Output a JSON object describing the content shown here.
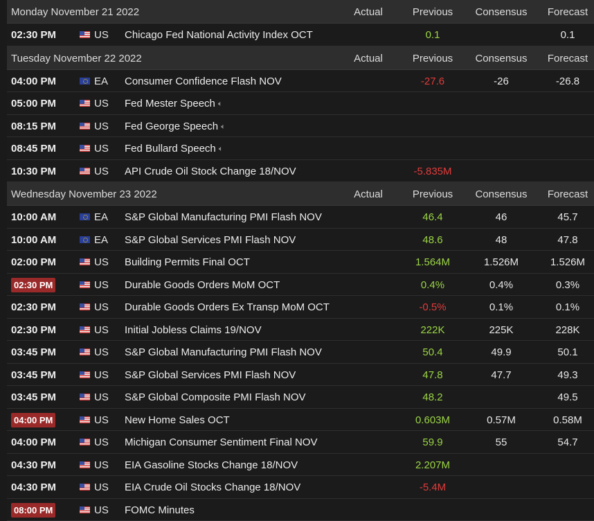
{
  "columns": {
    "actual": "Actual",
    "previous": "Previous",
    "consensus": "Consensus",
    "forecast": "Forecast"
  },
  "colors": {
    "header_bg": "#2e2e2e",
    "row_bg": "#1b1b1b",
    "positive": "#9bd545",
    "negative": "#e23b3b",
    "highlight_time": "#9a2a2a"
  },
  "days": [
    {
      "date": "Monday November 21 2022",
      "events": [
        {
          "time": "02:30 PM",
          "highlight": false,
          "flag": "us",
          "currency": "US",
          "name": "Chicago Fed National Activity Index OCT",
          "speech": false,
          "actual": "",
          "previous": "0.1",
          "previous_color": "green",
          "consensus": "",
          "forecast": "0.1"
        }
      ]
    },
    {
      "date": "Tuesday November 22 2022",
      "events": [
        {
          "time": "04:00 PM",
          "highlight": false,
          "flag": "ea",
          "currency": "EA",
          "name": "Consumer Confidence Flash NOV",
          "speech": false,
          "actual": "",
          "previous": "-27.6",
          "previous_color": "red",
          "consensus": "-26",
          "forecast": "-26.8"
        },
        {
          "time": "05:00 PM",
          "highlight": false,
          "flag": "us",
          "currency": "US",
          "name": "Fed Mester Speech",
          "speech": true,
          "actual": "",
          "previous": "",
          "previous_color": "white",
          "consensus": "",
          "forecast": ""
        },
        {
          "time": "08:15 PM",
          "highlight": false,
          "flag": "us",
          "currency": "US",
          "name": "Fed George Speech",
          "speech": true,
          "actual": "",
          "previous": "",
          "previous_color": "white",
          "consensus": "",
          "forecast": ""
        },
        {
          "time": "08:45 PM",
          "highlight": false,
          "flag": "us",
          "currency": "US",
          "name": "Fed Bullard Speech",
          "speech": true,
          "actual": "",
          "previous": "",
          "previous_color": "white",
          "consensus": "",
          "forecast": ""
        },
        {
          "time": "10:30 PM",
          "highlight": false,
          "flag": "us",
          "currency": "US",
          "name": "API Crude Oil Stock Change 18/NOV",
          "speech": false,
          "actual": "",
          "previous": "-5.835M",
          "previous_color": "red",
          "consensus": "",
          "forecast": ""
        }
      ]
    },
    {
      "date": "Wednesday November 23 2022",
      "events": [
        {
          "time": "10:00 AM",
          "highlight": false,
          "flag": "ea",
          "currency": "EA",
          "name": "S&P Global Manufacturing PMI Flash NOV",
          "speech": false,
          "actual": "",
          "previous": "46.4",
          "previous_color": "green",
          "consensus": "46",
          "forecast": "45.7"
        },
        {
          "time": "10:00 AM",
          "highlight": false,
          "flag": "ea",
          "currency": "EA",
          "name": "S&P Global Services PMI Flash NOV",
          "speech": false,
          "actual": "",
          "previous": "48.6",
          "previous_color": "green",
          "consensus": "48",
          "forecast": "47.8"
        },
        {
          "time": "02:00 PM",
          "highlight": false,
          "flag": "us",
          "currency": "US",
          "name": "Building Permits Final OCT",
          "speech": false,
          "actual": "",
          "previous": "1.564M",
          "previous_color": "green",
          "consensus": "1.526M",
          "forecast": "1.526M"
        },
        {
          "time": "02:30 PM",
          "highlight": true,
          "flag": "us",
          "currency": "US",
          "name": "Durable Goods Orders MoM OCT",
          "speech": false,
          "actual": "",
          "previous": "0.4%",
          "previous_color": "green",
          "consensus": "0.4%",
          "forecast": "0.3%"
        },
        {
          "time": "02:30 PM",
          "highlight": false,
          "flag": "us",
          "currency": "US",
          "name": "Durable Goods Orders Ex Transp MoM OCT",
          "speech": false,
          "actual": "",
          "previous": "-0.5%",
          "previous_color": "red",
          "consensus": "0.1%",
          "forecast": "0.1%"
        },
        {
          "time": "02:30 PM",
          "highlight": false,
          "flag": "us",
          "currency": "US",
          "name": "Initial Jobless Claims 19/NOV",
          "speech": false,
          "actual": "",
          "previous": "222K",
          "previous_color": "green",
          "consensus": "225K",
          "forecast": "228K"
        },
        {
          "time": "03:45 PM",
          "highlight": false,
          "flag": "us",
          "currency": "US",
          "name": "S&P Global Manufacturing PMI Flash NOV",
          "speech": false,
          "actual": "",
          "previous": "50.4",
          "previous_color": "green",
          "consensus": "49.9",
          "forecast": "50.1"
        },
        {
          "time": "03:45 PM",
          "highlight": false,
          "flag": "us",
          "currency": "US",
          "name": "S&P Global Services PMI Flash NOV",
          "speech": false,
          "actual": "",
          "previous": "47.8",
          "previous_color": "green",
          "consensus": "47.7",
          "forecast": "49.3"
        },
        {
          "time": "03:45 PM",
          "highlight": false,
          "flag": "us",
          "currency": "US",
          "name": "S&P Global Composite PMI Flash NOV",
          "speech": false,
          "actual": "",
          "previous": "48.2",
          "previous_color": "green",
          "consensus": "",
          "forecast": "49.5"
        },
        {
          "time": "04:00 PM",
          "highlight": true,
          "flag": "us",
          "currency": "US",
          "name": "New Home Sales OCT",
          "speech": false,
          "actual": "",
          "previous": "0.603M",
          "previous_color": "green",
          "consensus": "0.57M",
          "forecast": "0.58M"
        },
        {
          "time": "04:00 PM",
          "highlight": false,
          "flag": "us",
          "currency": "US",
          "name": "Michigan Consumer Sentiment Final NOV",
          "speech": false,
          "actual": "",
          "previous": "59.9",
          "previous_color": "green",
          "consensus": "55",
          "forecast": "54.7"
        },
        {
          "time": "04:30 PM",
          "highlight": false,
          "flag": "us",
          "currency": "US",
          "name": "EIA Gasoline Stocks Change 18/NOV",
          "speech": false,
          "actual": "",
          "previous": "2.207M",
          "previous_color": "green",
          "consensus": "",
          "forecast": ""
        },
        {
          "time": "04:30 PM",
          "highlight": false,
          "flag": "us",
          "currency": "US",
          "name": "EIA Crude Oil Stocks Change 18/NOV",
          "speech": false,
          "actual": "",
          "previous": "-5.4M",
          "previous_color": "red",
          "consensus": "",
          "forecast": ""
        },
        {
          "time": "08:00 PM",
          "highlight": true,
          "flag": "us",
          "currency": "US",
          "name": "FOMC Minutes",
          "speech": false,
          "actual": "",
          "previous": "",
          "previous_color": "white",
          "consensus": "",
          "forecast": ""
        }
      ]
    }
  ]
}
